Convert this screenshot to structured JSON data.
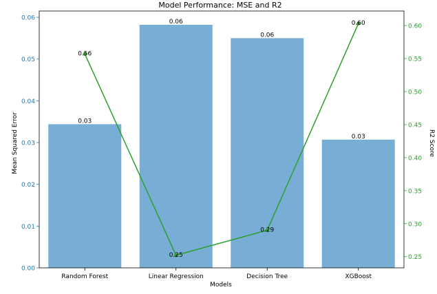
{
  "chart_data": {
    "type": "bar",
    "title": "Model Performance: MSE and R2",
    "xlabel": "Models",
    "ylabel": "Mean Squared Error",
    "y2label": "R2 Score",
    "categories": [
      "Random Forest",
      "Linear Regression",
      "Decision Tree",
      "XGBoost"
    ],
    "series": [
      {
        "axis": "left",
        "type": "bar",
        "values": [
          0.0344,
          0.0582,
          0.055,
          0.0307
        ],
        "labels": [
          "0.03",
          "0.06",
          "0.06",
          "0.03"
        ],
        "color": "#78aed6"
      },
      {
        "axis": "right",
        "type": "line",
        "values": [
          0.557,
          0.252,
          0.29,
          0.603
        ],
        "labels": [
          "0.56",
          "0.25",
          "0.29",
          "0.60"
        ],
        "color": "#2ca02c"
      }
    ],
    "ylim": [
      0,
      0.0615
    ],
    "y2lim": [
      0.233,
      0.622
    ],
    "yticks": [
      0.0,
      0.01,
      0.02,
      0.03,
      0.04,
      0.05,
      0.06
    ],
    "ytick_labels": [
      "0.00",
      "0.01",
      "0.02",
      "0.03",
      "0.04",
      "0.05",
      "0.06"
    ],
    "y2ticks": [
      0.25,
      0.3,
      0.35,
      0.4,
      0.45,
      0.5,
      0.55,
      0.6
    ],
    "y2tick_labels": [
      "0.25",
      "0.30",
      "0.35",
      "0.40",
      "0.45",
      "0.50",
      "0.55",
      "0.60"
    ],
    "colors": {
      "left_axis": "#1f77b4",
      "right_axis": "#2ca02c"
    },
    "grid": false
  }
}
